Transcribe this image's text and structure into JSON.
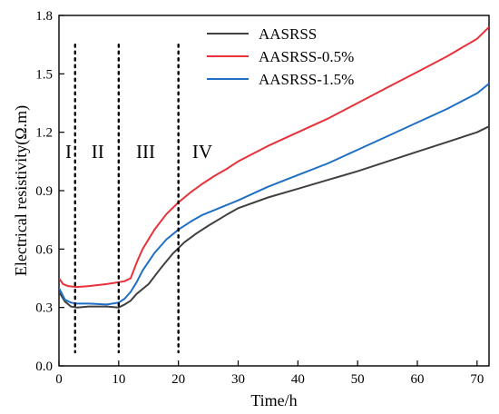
{
  "chart_data": {
    "type": "line",
    "xlabel": "Time/h",
    "ylabel": "Electrical resistivity(Ω.m)",
    "xlim": [
      0,
      72
    ],
    "ylim": [
      0.0,
      1.8
    ],
    "xticks": [
      0,
      10,
      20,
      30,
      40,
      50,
      60,
      70
    ],
    "yticks": [
      0.0,
      0.3,
      0.6,
      0.9,
      1.2,
      1.5,
      1.8
    ],
    "grid": false,
    "legend_position": "top-center",
    "stage_dividers": [
      2.7,
      10,
      20
    ],
    "stage_labels": [
      {
        "text": "I",
        "x": 1.6,
        "y": 1.1
      },
      {
        "text": "II",
        "x": 6.5,
        "y": 1.1
      },
      {
        "text": "III",
        "x": 14.5,
        "y": 1.1
      },
      {
        "text": "IV",
        "x": 24,
        "y": 1.1
      }
    ],
    "series": [
      {
        "name": "AASRSS",
        "color": "#404040",
        "x": [
          0,
          1,
          2,
          3,
          5,
          8,
          10,
          11,
          12,
          13,
          15,
          17,
          19,
          21,
          23,
          25,
          28,
          30,
          35,
          40,
          45,
          50,
          55,
          60,
          65,
          70,
          72
        ],
        "y": [
          0.38,
          0.33,
          0.305,
          0.3,
          0.305,
          0.305,
          0.3,
          0.315,
          0.335,
          0.37,
          0.42,
          0.5,
          0.575,
          0.635,
          0.68,
          0.72,
          0.775,
          0.81,
          0.865,
          0.91,
          0.955,
          1.0,
          1.05,
          1.1,
          1.15,
          1.2,
          1.23
        ]
      },
      {
        "name": "AASRSS-0.5%",
        "color": "#e8323b",
        "x": [
          0,
          0.7,
          1.5,
          3,
          5,
          8,
          10,
          11,
          12,
          13,
          14,
          16,
          18,
          20,
          22,
          24,
          26,
          28,
          30,
          35,
          40,
          45,
          50,
          55,
          60,
          65,
          70,
          72
        ],
        "y": [
          0.45,
          0.42,
          0.41,
          0.405,
          0.41,
          0.42,
          0.43,
          0.435,
          0.45,
          0.53,
          0.6,
          0.7,
          0.78,
          0.84,
          0.89,
          0.935,
          0.975,
          1.01,
          1.05,
          1.13,
          1.2,
          1.27,
          1.35,
          1.43,
          1.51,
          1.59,
          1.68,
          1.74
        ]
      },
      {
        "name": "AASRSS-1.5%",
        "color": "#1f6fc4",
        "x": [
          0,
          1,
          2,
          3,
          5,
          8,
          10,
          11,
          12,
          13,
          14,
          16,
          18,
          20,
          22,
          24,
          26,
          28,
          30,
          35,
          40,
          45,
          50,
          55,
          60,
          65,
          70,
          72
        ],
        "y": [
          0.4,
          0.34,
          0.325,
          0.32,
          0.32,
          0.315,
          0.325,
          0.345,
          0.38,
          0.43,
          0.49,
          0.58,
          0.65,
          0.7,
          0.74,
          0.775,
          0.8,
          0.825,
          0.85,
          0.92,
          0.98,
          1.04,
          1.11,
          1.18,
          1.25,
          1.32,
          1.4,
          1.45
        ]
      }
    ]
  }
}
